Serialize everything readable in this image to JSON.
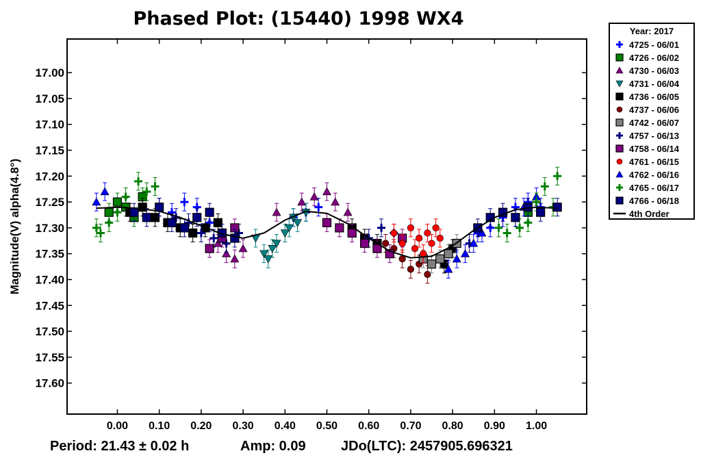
{
  "chart_data": {
    "type": "scatter",
    "title": "Phased Plot: (15440) 1998 WX4",
    "xlabel": "",
    "ylabel": "Magnitude(V) alpha(4.8°)",
    "xlim": [
      -0.12,
      1.12
    ],
    "ylim": [
      17.66,
      16.935
    ],
    "y_inverted": true,
    "x_ticks": [
      "0.00",
      "0.10",
      "0.20",
      "0.30",
      "0.40",
      "0.50",
      "0.60",
      "0.70",
      "0.80",
      "0.90",
      "1.00"
    ],
    "y_ticks": [
      "17.00",
      "17.05",
      "17.10",
      "17.15",
      "17.20",
      "17.25",
      "17.30",
      "17.35",
      "17.40",
      "17.45",
      "17.50",
      "17.55",
      "17.60"
    ],
    "grid": false,
    "legend_position": "outside-right",
    "legend_title": "Year: 2017",
    "series": [
      {
        "name": "4725 - 06/01",
        "marker": "plus",
        "color": "#0000ff",
        "x": [
          0.1,
          0.13,
          0.16,
          0.19,
          0.22,
          0.42,
          0.45,
          0.48,
          0.86,
          0.89,
          0.92,
          0.95,
          0.98,
          1.01
        ],
        "y": [
          17.26,
          17.27,
          17.25,
          17.26,
          17.29,
          17.28,
          17.27,
          17.26,
          17.31,
          17.3,
          17.28,
          17.26,
          17.25,
          17.26
        ]
      },
      {
        "name": "4726 - 06/02",
        "marker": "square",
        "color": "#008000",
        "x": [
          -0.02,
          0.0,
          0.02,
          0.04,
          0.06,
          0.98
        ],
        "y": [
          17.27,
          17.25,
          17.26,
          17.28,
          17.24,
          17.27
        ]
      },
      {
        "name": "4730 - 06/03",
        "marker": "triangle-up",
        "color": "#800080",
        "x": [
          0.24,
          0.26,
          0.28,
          0.3,
          0.38,
          0.44,
          0.47,
          0.5,
          0.52,
          0.55
        ],
        "y": [
          17.33,
          17.35,
          17.36,
          17.34,
          17.27,
          17.25,
          17.24,
          17.23,
          17.25,
          17.27
        ]
      },
      {
        "name": "4731 - 06/04",
        "marker": "triangle-down",
        "color": "#008080",
        "x": [
          0.33,
          0.35,
          0.36,
          0.37,
          0.38,
          0.4,
          0.41,
          0.42,
          0.43,
          0.45
        ],
        "y": [
          17.32,
          17.35,
          17.36,
          17.34,
          17.33,
          17.31,
          17.3,
          17.28,
          17.29,
          17.27
        ]
      },
      {
        "name": "4736 - 06/05",
        "marker": "square",
        "color": "#000000",
        "x": [
          0.03,
          0.06,
          0.09,
          0.12,
          0.15,
          0.18,
          0.21,
          0.24,
          0.56,
          0.59,
          0.62,
          0.78,
          0.8
        ],
        "y": [
          17.27,
          17.26,
          17.28,
          17.29,
          17.3,
          17.31,
          17.3,
          17.29,
          17.3,
          17.32,
          17.33,
          17.37,
          17.34
        ]
      },
      {
        "name": "4737 - 06/06",
        "marker": "circle",
        "color": "#800000",
        "x": [
          0.64,
          0.66,
          0.68,
          0.7,
          0.72,
          0.74
        ],
        "y": [
          17.33,
          17.34,
          17.36,
          17.38,
          17.37,
          17.39
        ]
      },
      {
        "name": "4742 - 06/07",
        "marker": "square",
        "color": "#808080",
        "x": [
          0.73,
          0.75,
          0.77,
          0.79,
          0.81
        ],
        "y": [
          17.36,
          17.37,
          17.36,
          17.35,
          17.33
        ]
      },
      {
        "name": "4757 - 06/13",
        "marker": "plus",
        "color": "#000080",
        "x": [
          0.14,
          0.17,
          0.2,
          0.23,
          0.26,
          0.29,
          0.6,
          0.63,
          0.66,
          0.84
        ],
        "y": [
          17.28,
          17.29,
          17.31,
          17.32,
          17.33,
          17.31,
          17.32,
          17.3,
          17.31,
          17.33
        ]
      },
      {
        "name": "4758 - 06/14",
        "marker": "square",
        "color": "#800080",
        "x": [
          0.22,
          0.25,
          0.28,
          0.5,
          0.53,
          0.56,
          0.59,
          0.62,
          0.65,
          0.68
        ],
        "y": [
          17.34,
          17.32,
          17.3,
          17.29,
          17.3,
          17.31,
          17.33,
          17.34,
          17.35,
          17.32
        ]
      },
      {
        "name": "4761 - 06/15",
        "marker": "circle",
        "color": "#ff0000",
        "x": [
          0.66,
          0.68,
          0.7,
          0.71,
          0.72,
          0.73,
          0.74,
          0.75,
          0.76,
          0.77
        ],
        "y": [
          17.31,
          17.33,
          17.3,
          17.34,
          17.32,
          17.35,
          17.31,
          17.33,
          17.3,
          17.32
        ]
      },
      {
        "name": "4762 - 06/16",
        "marker": "triangle-up",
        "color": "#0000ff",
        "x": [
          -0.05,
          -0.03,
          0.79,
          0.81,
          0.83,
          0.85,
          0.87,
          0.95,
          0.97,
          1.0
        ],
        "y": [
          17.25,
          17.23,
          17.38,
          17.36,
          17.35,
          17.33,
          17.31,
          17.28,
          17.26,
          17.24
        ]
      },
      {
        "name": "4765 - 06/17",
        "marker": "plus",
        "color": "#008000",
        "x": [
          -0.05,
          -0.04,
          -0.02,
          0.0,
          0.02,
          0.05,
          0.07,
          0.09,
          0.91,
          0.93,
          0.96,
          0.98,
          1.0,
          1.02,
          1.04,
          1.05
        ],
        "y": [
          17.3,
          17.31,
          17.29,
          17.27,
          17.24,
          17.21,
          17.23,
          17.22,
          17.3,
          17.31,
          17.3,
          17.29,
          17.25,
          17.22,
          17.26,
          17.2
        ]
      },
      {
        "name": "4766 - 06/18",
        "marker": "square",
        "color": "#000080",
        "x": [
          0.04,
          0.07,
          0.1,
          0.13,
          0.16,
          0.19,
          0.22,
          0.25,
          0.28,
          0.86,
          0.89,
          0.92,
          0.95,
          0.98,
          1.01,
          1.05
        ],
        "y": [
          17.27,
          17.28,
          17.26,
          17.29,
          17.3,
          17.28,
          17.27,
          17.31,
          17.32,
          17.3,
          17.28,
          17.27,
          17.28,
          17.26,
          17.27,
          17.26
        ]
      }
    ],
    "fit": {
      "name": "4th Order",
      "color": "#000000",
      "x": [
        -0.05,
        0.0,
        0.05,
        0.1,
        0.15,
        0.2,
        0.25,
        0.3,
        0.35,
        0.4,
        0.45,
        0.5,
        0.55,
        0.6,
        0.65,
        0.7,
        0.75,
        0.8,
        0.85,
        0.9,
        0.95,
        1.0,
        1.05
      ],
      "y": [
        17.262,
        17.26,
        17.262,
        17.268,
        17.28,
        17.296,
        17.312,
        17.32,
        17.31,
        17.285,
        17.268,
        17.272,
        17.292,
        17.32,
        17.345,
        17.358,
        17.355,
        17.335,
        17.305,
        17.28,
        17.265,
        17.26,
        17.262
      ]
    }
  },
  "footer": {
    "period": "Period: 21.43 ± 0.02 h",
    "amp": "Amp: 0.09",
    "jdo": "JDo(LTC): 2457905.696321"
  }
}
